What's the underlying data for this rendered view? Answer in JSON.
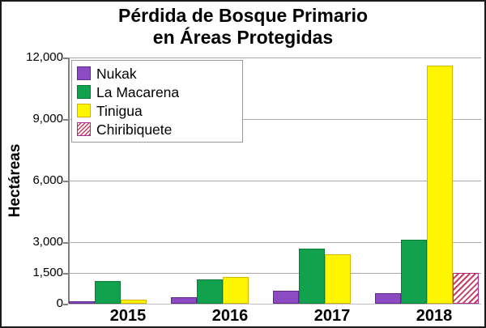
{
  "title": {
    "line1": "Pérdida de Bosque Primario",
    "line2": "en Áreas Protegidas"
  },
  "y_axis": {
    "label": "Hectáreas"
  },
  "chart_data": {
    "type": "bar",
    "title": "Pérdida de Bosque Primario en Áreas Protegidas",
    "ylabel": "Hectáreas",
    "xlabel": "",
    "ylim": [
      0,
      12000
    ],
    "grid": true,
    "legend_position": "top-left",
    "categories": [
      "2015",
      "2016",
      "2017",
      "2018"
    ],
    "yticks": [
      {
        "label": "0",
        "value": 0
      },
      {
        "label": "1,500",
        "value": 1500
      },
      {
        "label": "3,000",
        "value": 3000
      },
      {
        "label": "6,000",
        "value": 6000
      },
      {
        "label": "9,000",
        "value": 9000
      },
      {
        "label": "12,000",
        "value": 12000
      }
    ],
    "series": [
      {
        "name": "Nukak",
        "color": "#8C4BC2",
        "border": "#5F2B8C",
        "hatch": false,
        "values": [
          100,
          300,
          650,
          500
        ]
      },
      {
        "name": "La Macarena",
        "color": "#12A24D",
        "border": "#0C7A3A",
        "hatch": false,
        "values": [
          1100,
          1200,
          2700,
          3100
        ]
      },
      {
        "name": "Tinigua",
        "color": "#FFF500",
        "border": "#D9B200",
        "hatch": false,
        "values": [
          200,
          1300,
          2400,
          11600
        ]
      },
      {
        "name": "Chiribiquete",
        "color": "#FFFFFF",
        "border": "#AA2D8C",
        "hatch": true,
        "hatch_color": "#CC3A60",
        "values": [
          null,
          null,
          null,
          1500
        ]
      }
    ]
  }
}
